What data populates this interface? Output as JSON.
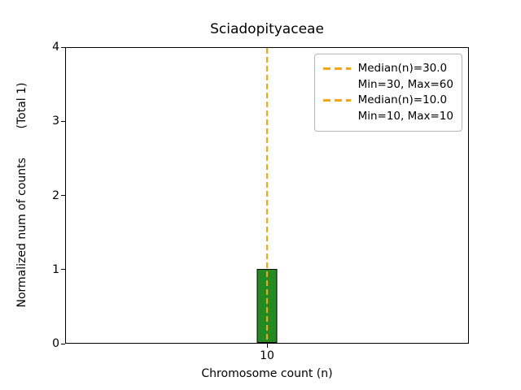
{
  "chart_data": {
    "type": "bar",
    "title": "Sciadopityaceae",
    "xlabel": "Chromosome count (n)",
    "ylabel": "Normalized num of counts        (Total 1)",
    "categories": [
      "10"
    ],
    "values": [
      1
    ],
    "total_label": "(Total 1)",
    "ylim": [
      0,
      4
    ],
    "ytick_labels": [
      "0",
      "1",
      "2",
      "3",
      "4"
    ],
    "xtick_labels": [
      "10"
    ],
    "bar_color": "#228B22",
    "bar_edge_color": "#000000",
    "grid": false,
    "median_line": {
      "x": 10,
      "color": "#FFA500",
      "style": "dashed"
    },
    "legend": {
      "position": "upper right",
      "entries": [
        {
          "label": "Median(n)=30.0",
          "sublabel": "Min=30, Max=60",
          "line_color": "#FFA500",
          "line_style": "dashed"
        },
        {
          "label": "Median(n)=10.0",
          "sublabel": "Min=10, Max=10",
          "line_color": "#FFA500",
          "line_style": "dashed"
        }
      ]
    }
  }
}
